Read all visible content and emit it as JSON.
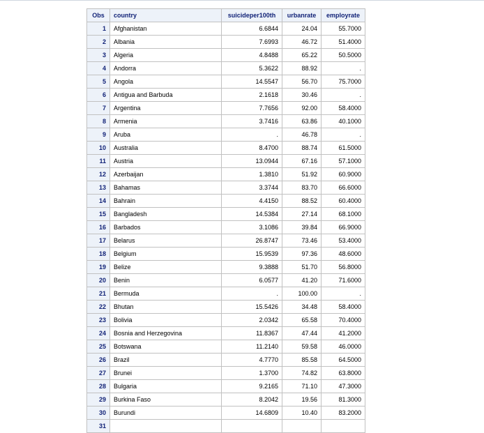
{
  "table": {
    "headers": [
      "Obs",
      "country",
      "suicideper100th",
      "urbanrate",
      "employrate"
    ],
    "rows": [
      [
        "1",
        "Afghanistan",
        "6.6844",
        "24.04",
        "55.7000"
      ],
      [
        "2",
        "Albania",
        "7.6993",
        "46.72",
        "51.4000"
      ],
      [
        "3",
        "Algeria",
        "4.8488",
        "65.22",
        "50.5000"
      ],
      [
        "4",
        "Andorra",
        "5.3622",
        "88.92",
        "."
      ],
      [
        "5",
        "Angola",
        "14.5547",
        "56.70",
        "75.7000"
      ],
      [
        "6",
        "Antigua and Barbuda",
        "2.1618",
        "30.46",
        "."
      ],
      [
        "7",
        "Argentina",
        "7.7656",
        "92.00",
        "58.4000"
      ],
      [
        "8",
        "Armenia",
        "3.7416",
        "63.86",
        "40.1000"
      ],
      [
        "9",
        "Aruba",
        ".",
        "46.78",
        "."
      ],
      [
        "10",
        "Australia",
        "8.4700",
        "88.74",
        "61.5000"
      ],
      [
        "11",
        "Austria",
        "13.0944",
        "67.16",
        "57.1000"
      ],
      [
        "12",
        "Azerbaijan",
        "1.3810",
        "51.92",
        "60.9000"
      ],
      [
        "13",
        "Bahamas",
        "3.3744",
        "83.70",
        "66.6000"
      ],
      [
        "14",
        "Bahrain",
        "4.4150",
        "88.52",
        "60.4000"
      ],
      [
        "15",
        "Bangladesh",
        "14.5384",
        "27.14",
        "68.1000"
      ],
      [
        "16",
        "Barbados",
        "3.1086",
        "39.84",
        "66.9000"
      ],
      [
        "17",
        "Belarus",
        "26.8747",
        "73.46",
        "53.4000"
      ],
      [
        "18",
        "Belgium",
        "15.9539",
        "97.36",
        "48.6000"
      ],
      [
        "19",
        "Belize",
        "9.3888",
        "51.70",
        "56.8000"
      ],
      [
        "20",
        "Benin",
        "6.0577",
        "41.20",
        "71.6000"
      ],
      [
        "21",
        "Bermuda",
        ".",
        "100.00",
        "."
      ],
      [
        "22",
        "Bhutan",
        "15.5426",
        "34.48",
        "58.4000"
      ],
      [
        "23",
        "Bolivia",
        "2.0342",
        "65.58",
        "70.4000"
      ],
      [
        "24",
        "Bosnia and Herzegovina",
        "11.8367",
        "47.44",
        "41.2000"
      ],
      [
        "25",
        "Botswana",
        "11.2140",
        "59.58",
        "46.0000"
      ],
      [
        "26",
        "Brazil",
        "4.7770",
        "85.58",
        "64.5000"
      ],
      [
        "27",
        "Brunei",
        "1.3700",
        "74.82",
        "63.8000"
      ],
      [
        "28",
        "Bulgaria",
        "9.2165",
        "71.10",
        "47.3000"
      ],
      [
        "29",
        "Burkina Faso",
        "8.2042",
        "19.56",
        "81.3000"
      ],
      [
        "30",
        "Burundi",
        "14.6809",
        "10.40",
        "83.2000"
      ],
      [
        "31",
        "",
        "",
        "",
        ""
      ]
    ]
  }
}
